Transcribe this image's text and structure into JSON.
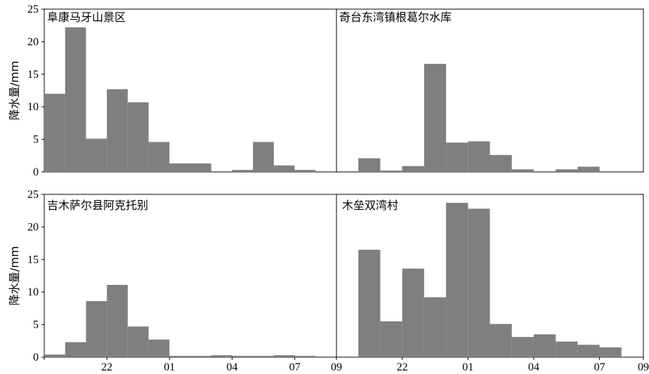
{
  "colors": {
    "bar": "#7f7f7f",
    "frame": "#000000",
    "background": "#ffffff"
  },
  "chart_data": [
    {
      "type": "bar",
      "title": "阜康马牙山景区",
      "ylabel": "降水量/mm",
      "xlabel": "",
      "ylim": [
        0,
        25
      ],
      "yticks": [
        "0",
        "5",
        "10",
        "15",
        "20",
        "25"
      ],
      "x_tick_labels": [],
      "categories": [
        0,
        1,
        2,
        3,
        4,
        5,
        6,
        7,
        8,
        9,
        10,
        11,
        12,
        13
      ],
      "values": [
        12,
        22.2,
        5.1,
        12.7,
        10.7,
        4.6,
        1.3,
        1.3,
        0,
        0.3,
        4.6,
        1,
        0.3,
        0
      ]
    },
    {
      "type": "bar",
      "title": "奇台东湾镇根葛尔水库",
      "ylabel": "",
      "xlabel": "",
      "ylim": [
        0,
        25
      ],
      "yticks": [],
      "x_tick_labels": [],
      "categories": [
        0,
        1,
        2,
        3,
        4,
        5,
        6,
        7,
        8,
        9,
        10,
        11,
        12,
        13
      ],
      "values": [
        0,
        2.1,
        0.2,
        0.9,
        16.6,
        4.5,
        4.7,
        2.6,
        0.4,
        0,
        0.4,
        0.8,
        0,
        0
      ]
    },
    {
      "type": "bar",
      "title": "吉木萨尔县阿克托别",
      "ylabel": "降水量/mm",
      "xlabel": "",
      "ylim": [
        0,
        25
      ],
      "yticks": [
        "0",
        "5",
        "10",
        "15",
        "20",
        "25"
      ],
      "x_tick_labels": [
        "22",
        "01",
        "04",
        "07",
        "09"
      ],
      "categories": [
        0,
        1,
        2,
        3,
        4,
        5,
        6,
        7,
        8,
        9,
        10,
        11,
        12,
        13
      ],
      "values": [
        0.4,
        2.3,
        8.6,
        11.1,
        4.7,
        2.7,
        0.2,
        0.2,
        0.3,
        0.2,
        0.2,
        0.3,
        0.2,
        0
      ]
    },
    {
      "type": "bar",
      "title": "木垒双湾村",
      "ylabel": "",
      "xlabel": "",
      "ylim": [
        0,
        25
      ],
      "yticks": [],
      "x_tick_labels": [
        "22",
        "01",
        "04",
        "07",
        "09"
      ],
      "categories": [
        0,
        1,
        2,
        3,
        4,
        5,
        6,
        7,
        8,
        9,
        10,
        11,
        12,
        13
      ],
      "values": [
        0,
        16.5,
        5.5,
        13.6,
        9.2,
        23.7,
        22.8,
        5.1,
        3.1,
        3.5,
        2.4,
        1.9,
        1.5,
        0
      ]
    }
  ]
}
